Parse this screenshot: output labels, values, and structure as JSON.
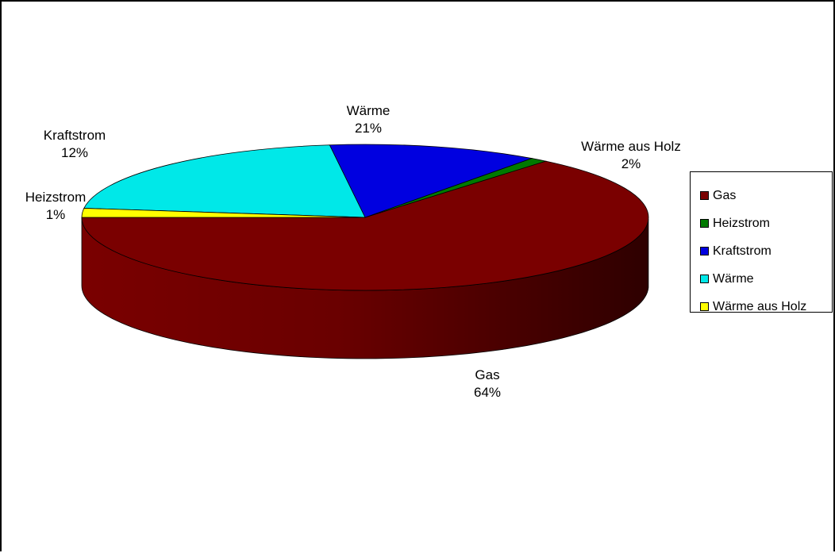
{
  "chart_data": {
    "type": "pie",
    "title": "",
    "three_d": true,
    "legend_position": "right",
    "categories": [
      "Gas",
      "Heizstrom",
      "Kraftstrom",
      "Wärme",
      "Wärme aus Holz"
    ],
    "values": [
      64,
      1,
      12,
      21,
      2
    ],
    "value_labels": [
      "64%",
      "1%",
      "12%",
      "21%",
      "2%"
    ],
    "colors": [
      "#7a0000",
      "#007a00",
      "#0000e0",
      "#00e8e8",
      "#ffff00"
    ]
  }
}
